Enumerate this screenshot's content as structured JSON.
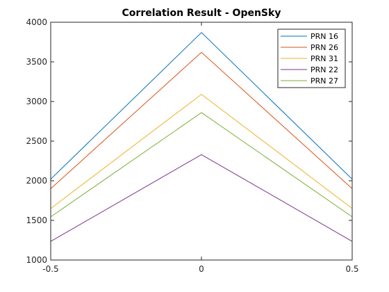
{
  "chart_data": {
    "type": "line",
    "title": "Correlation Result - OpenSky",
    "xlabel": "",
    "ylabel": "",
    "xlim": [
      -0.5,
      0.5
    ],
    "ylim": [
      1000,
      4000
    ],
    "xticks": [
      -0.5,
      0,
      0.5
    ],
    "xtick_labels": [
      "-0.5",
      "0",
      "0.5"
    ],
    "yticks": [
      1000,
      1500,
      2000,
      2500,
      3000,
      3500,
      4000
    ],
    "ytick_labels": [
      "1000",
      "1500",
      "2000",
      "2500",
      "3000",
      "3500",
      "4000"
    ],
    "grid": false,
    "legend_position": "top-right",
    "x": [
      -0.5,
      0,
      0.5
    ],
    "series": [
      {
        "name": "PRN 16",
        "color": "#0072BD",
        "values": [
          2020,
          3870,
          2020
        ]
      },
      {
        "name": "PRN 26",
        "color": "#D95319",
        "values": [
          1900,
          3620,
          1900
        ]
      },
      {
        "name": "PRN 31",
        "color": "#EDB120",
        "values": [
          1650,
          3090,
          1650
        ]
      },
      {
        "name": "PRN 22",
        "color": "#7E2F8E",
        "values": [
          1235,
          2330,
          1235
        ]
      },
      {
        "name": "PRN 27",
        "color": "#77AC30",
        "values": [
          1545,
          2860,
          1545
        ]
      }
    ]
  }
}
